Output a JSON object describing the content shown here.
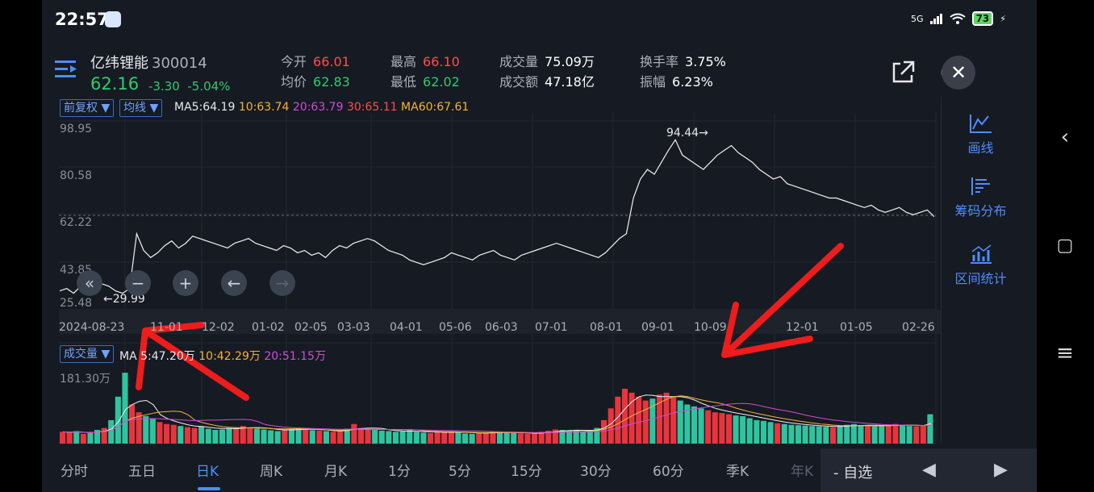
{
  "status_bar": {
    "time": "22:57",
    "network": "5G",
    "battery": "73"
  },
  "header": {
    "name": "亿纬锂能",
    "code": "300014",
    "price": "62.16",
    "change": "-3.30",
    "change_pct": "-5.04%",
    "stats": [
      {
        "label": "今开",
        "value": "66.01",
        "color": "red"
      },
      {
        "label": "均价",
        "value": "62.83",
        "color": "green"
      },
      {
        "label": "最高",
        "value": "66.10",
        "color": "red"
      },
      {
        "label": "最低",
        "value": "62.02",
        "color": "green"
      },
      {
        "label": "成交量",
        "value": "75.09万",
        "color": "white"
      },
      {
        "label": "成交额",
        "value": "47.18亿",
        "color": "white"
      },
      {
        "label": "换手率",
        "value": "3.75%",
        "color": "white"
      },
      {
        "label": "振幅",
        "value": "6.23%",
        "color": "white"
      }
    ]
  },
  "price_chart": {
    "adjust_dropdown": "前复权",
    "indicator_dropdown": "均线",
    "ma_legend": [
      {
        "text": "MA5:64.19",
        "color": "#e6e8ec"
      },
      {
        "text": "10:63.74",
        "color": "#f5b335"
      },
      {
        "text": "20:63.79",
        "color": "#d04bd8"
      },
      {
        "text": "30:65.11",
        "color": "#ff4d4d"
      },
      {
        "text": "MA60:67.61",
        "color": "#f5b335"
      }
    ],
    "y_ticks": [
      "98.95",
      "80.58",
      "62.22",
      "43.85",
      "25.48"
    ],
    "high_marker": "94.44→",
    "low_marker": "←29.99",
    "x_labels": [
      "2024-08-23",
      "11-01",
      "12-02",
      "01-02",
      "02-05",
      "03-03",
      "04-01",
      "05-06",
      "06-03",
      "07-01",
      "08-01",
      "09-01",
      "10-09",
      "12-01",
      "01-05",
      "02-26"
    ]
  },
  "volume_chart": {
    "dropdown": "成交量",
    "legend": [
      {
        "text": "MA 5:47.20万",
        "color": "#e6e8ec"
      },
      {
        "text": "10:42.29万",
        "color": "#f5b335"
      },
      {
        "text": "20:51.15万",
        "color": "#d04bd8"
      }
    ],
    "y_tick": "181.30万"
  },
  "sidebar": [
    {
      "label": "画线",
      "icon": "draw-line-icon"
    },
    {
      "label": "筹码分布",
      "icon": "chip-distribution-icon"
    },
    {
      "label": "区间统计",
      "icon": "range-stats-icon"
    }
  ],
  "period_tabs": [
    "分时",
    "五日",
    "日K",
    "周K",
    "月K",
    "1分",
    "5分",
    "15分",
    "30分",
    "60分",
    "季K",
    "年K"
  ],
  "active_tab": "日K",
  "watchlist_label": "- 自选",
  "chart_data": {
    "type": "line",
    "title": "",
    "x_labels": [
      "2024-08-23",
      "11-01",
      "12-02",
      "01-02",
      "02-05",
      "03-03",
      "04-01",
      "05-06",
      "06-03",
      "07-01",
      "08-01",
      "09-01",
      "10-09",
      "12-01",
      "01-05",
      "02-26"
    ],
    "y_range": [
      25.48,
      98.95
    ],
    "marked_high": 94.44,
    "marked_low": 29.99,
    "close_series": [
      31,
      32,
      30,
      33,
      31,
      30,
      34,
      33,
      31,
      30,
      32,
      55,
      48,
      45,
      47,
      50,
      52,
      49,
      51,
      54,
      53,
      52,
      51,
      50,
      49,
      51,
      52,
      53,
      51,
      50,
      49,
      48,
      50,
      49,
      47,
      48,
      46,
      47,
      45,
      48,
      50,
      49,
      51,
      52,
      53,
      52,
      50,
      48,
      47,
      46,
      44,
      43,
      42,
      43,
      44,
      45,
      47,
      46,
      45,
      44,
      46,
      47,
      48,
      46,
      45,
      44,
      46,
      47,
      48,
      49,
      50,
      51,
      50,
      49,
      48,
      47,
      46,
      45,
      47,
      50,
      53,
      55,
      70,
      78,
      82,
      80,
      85,
      90,
      94.44,
      88,
      86,
      84,
      82,
      85,
      88,
      90,
      92,
      89,
      87,
      85,
      82,
      80,
      78,
      79,
      76,
      75,
      74,
      73,
      72,
      71,
      70,
      70,
      69,
      68,
      67,
      66,
      67,
      65,
      64,
      65,
      66,
      64,
      63,
      64,
      65,
      62.16
    ],
    "volume_series": [
      30,
      28,
      32,
      25,
      27,
      35,
      40,
      60,
      120,
      181,
      100,
      80,
      70,
      65,
      55,
      50,
      48,
      45,
      42,
      40,
      44,
      38,
      35,
      36,
      40,
      42,
      45,
      40,
      38,
      36,
      34,
      32,
      35,
      38,
      40,
      36,
      34,
      33,
      32,
      30,
      34,
      38,
      50,
      40,
      36,
      35,
      33,
      32,
      30,
      31,
      34,
      30,
      28,
      27,
      29,
      31,
      30,
      28,
      26,
      25,
      27,
      29,
      31,
      30,
      28,
      27,
      26,
      25,
      27,
      30,
      33,
      36,
      35,
      34,
      33,
      32,
      35,
      40,
      60,
      90,
      120,
      140,
      130,
      120,
      110,
      115,
      125,
      130,
      120,
      110,
      100,
      95,
      90,
      85,
      80,
      78,
      75,
      72,
      70,
      65,
      60,
      58,
      55,
      52,
      50,
      48,
      47,
      46,
      45,
      44,
      43,
      42,
      45,
      48,
      50,
      47,
      45,
      44,
      46,
      48,
      50,
      47,
      45,
      44,
      46,
      75
    ]
  }
}
